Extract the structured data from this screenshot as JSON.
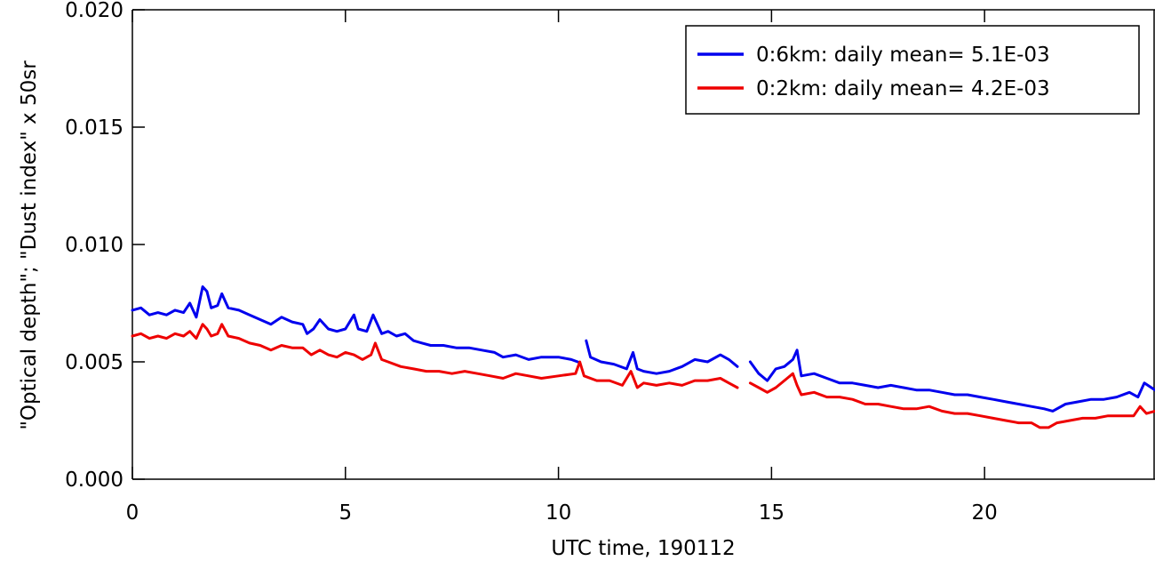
{
  "chart_data": {
    "type": "line",
    "xlabel": "UTC time, 190112",
    "ylabel": "\"Optical depth\"; \"Dust index\" x 50sr",
    "xlim": [
      0,
      24
    ],
    "ylim": [
      0,
      0.02
    ],
    "x_ticks": [
      0,
      5,
      10,
      15,
      20
    ],
    "x_tick_labels": [
      "0",
      "5",
      "10",
      "15",
      "20"
    ],
    "y_ticks": [
      0,
      0.005,
      0.01,
      0.015,
      0.02
    ],
    "y_tick_labels": [
      "0.000",
      "0.005",
      "0.010",
      "0.015",
      "0.020"
    ],
    "grid": false,
    "legend_position": "top-right",
    "series": [
      {
        "name": "0:6km: daily mean= 5.1E-03",
        "color": "#0000ee",
        "points": [
          [
            0,
            0.0072
          ],
          [
            0.2,
            0.0073
          ],
          [
            0.4,
            0.007
          ],
          [
            0.6,
            0.0071
          ],
          [
            0.8,
            0.007
          ],
          [
            1.0,
            0.0072
          ],
          [
            1.2,
            0.0071
          ],
          [
            1.35,
            0.0075
          ],
          [
            1.5,
            0.0069
          ],
          [
            1.65,
            0.0082
          ],
          [
            1.75,
            0.008
          ],
          [
            1.85,
            0.0073
          ],
          [
            2.0,
            0.0074
          ],
          [
            2.1,
            0.0079
          ],
          [
            2.25,
            0.0073
          ],
          [
            2.5,
            0.0072
          ],
          [
            2.75,
            0.007
          ],
          [
            3.0,
            0.0068
          ],
          [
            3.25,
            0.0066
          ],
          [
            3.5,
            0.0069
          ],
          [
            3.75,
            0.0067
          ],
          [
            4.0,
            0.0066
          ],
          [
            4.1,
            0.0062
          ],
          [
            4.25,
            0.0064
          ],
          [
            4.4,
            0.0068
          ],
          [
            4.6,
            0.0064
          ],
          [
            4.8,
            0.0063
          ],
          [
            5.0,
            0.0064
          ],
          [
            5.2,
            0.007
          ],
          [
            5.3,
            0.0064
          ],
          [
            5.5,
            0.0063
          ],
          [
            5.65,
            0.007
          ],
          [
            5.85,
            0.0062
          ],
          [
            6.0,
            0.0063
          ],
          [
            6.2,
            0.0061
          ],
          [
            6.4,
            0.0062
          ],
          [
            6.6,
            0.0059
          ],
          [
            6.8,
            0.0058
          ],
          [
            7.0,
            0.0057
          ],
          [
            7.3,
            0.0057
          ],
          [
            7.6,
            0.0056
          ],
          [
            7.9,
            0.0056
          ],
          [
            8.2,
            0.0055
          ],
          [
            8.5,
            0.0054
          ],
          [
            8.7,
            0.0052
          ],
          [
            9.0,
            0.0053
          ],
          [
            9.3,
            0.0051
          ],
          [
            9.6,
            0.0052
          ],
          [
            10.0,
            0.0052
          ],
          [
            10.3,
            0.0051
          ],
          [
            10.45,
            0.005
          ],
          [
            null,
            null
          ],
          [
            10.65,
            0.0059
          ],
          [
            10.75,
            0.0052
          ],
          [
            11.0,
            0.005
          ],
          [
            11.3,
            0.0049
          ],
          [
            11.6,
            0.0047
          ],
          [
            11.75,
            0.0054
          ],
          [
            11.85,
            0.0047
          ],
          [
            12.0,
            0.0046
          ],
          [
            12.3,
            0.0045
          ],
          [
            12.6,
            0.0046
          ],
          [
            12.9,
            0.0048
          ],
          [
            13.2,
            0.0051
          ],
          [
            13.5,
            0.005
          ],
          [
            13.8,
            0.0053
          ],
          [
            14.0,
            0.0051
          ],
          [
            14.2,
            0.0048
          ],
          [
            null,
            null
          ],
          [
            14.5,
            0.005
          ],
          [
            14.7,
            0.0045
          ],
          [
            14.9,
            0.0042
          ],
          [
            15.1,
            0.0047
          ],
          [
            15.3,
            0.0048
          ],
          [
            15.5,
            0.0051
          ],
          [
            15.6,
            0.0055
          ],
          [
            15.7,
            0.0044
          ],
          [
            16.0,
            0.0045
          ],
          [
            16.3,
            0.0043
          ],
          [
            16.6,
            0.0041
          ],
          [
            16.9,
            0.0041
          ],
          [
            17.2,
            0.004
          ],
          [
            17.5,
            0.0039
          ],
          [
            17.8,
            0.004
          ],
          [
            18.1,
            0.0039
          ],
          [
            18.4,
            0.0038
          ],
          [
            18.7,
            0.0038
          ],
          [
            19.0,
            0.0037
          ],
          [
            19.3,
            0.0036
          ],
          [
            19.6,
            0.0036
          ],
          [
            19.9,
            0.0035
          ],
          [
            20.2,
            0.0034
          ],
          [
            20.5,
            0.0033
          ],
          [
            20.8,
            0.0032
          ],
          [
            21.1,
            0.0031
          ],
          [
            21.4,
            0.003
          ],
          [
            21.6,
            0.0029
          ],
          [
            21.9,
            0.0032
          ],
          [
            22.2,
            0.0033
          ],
          [
            22.5,
            0.0034
          ],
          [
            22.8,
            0.0034
          ],
          [
            23.1,
            0.0035
          ],
          [
            23.4,
            0.0037
          ],
          [
            23.6,
            0.0035
          ],
          [
            23.75,
            0.0041
          ],
          [
            24.0,
            0.0038
          ]
        ]
      },
      {
        "name": "0:2km: daily mean= 4.2E-03",
        "color": "#ee0000",
        "points": [
          [
            0,
            0.0061
          ],
          [
            0.2,
            0.0062
          ],
          [
            0.4,
            0.006
          ],
          [
            0.6,
            0.0061
          ],
          [
            0.8,
            0.006
          ],
          [
            1.0,
            0.0062
          ],
          [
            1.2,
            0.0061
          ],
          [
            1.35,
            0.0063
          ],
          [
            1.5,
            0.006
          ],
          [
            1.65,
            0.0066
          ],
          [
            1.75,
            0.0064
          ],
          [
            1.85,
            0.0061
          ],
          [
            2.0,
            0.0062
          ],
          [
            2.1,
            0.0066
          ],
          [
            2.25,
            0.0061
          ],
          [
            2.5,
            0.006
          ],
          [
            2.75,
            0.0058
          ],
          [
            3.0,
            0.0057
          ],
          [
            3.25,
            0.0055
          ],
          [
            3.5,
            0.0057
          ],
          [
            3.75,
            0.0056
          ],
          [
            4.0,
            0.0056
          ],
          [
            4.2,
            0.0053
          ],
          [
            4.4,
            0.0055
          ],
          [
            4.6,
            0.0053
          ],
          [
            4.8,
            0.0052
          ],
          [
            5.0,
            0.0054
          ],
          [
            5.2,
            0.0053
          ],
          [
            5.4,
            0.0051
          ],
          [
            5.6,
            0.0053
          ],
          [
            5.7,
            0.0058
          ],
          [
            5.85,
            0.0051
          ],
          [
            6.0,
            0.005
          ],
          [
            6.3,
            0.0048
          ],
          [
            6.6,
            0.0047
          ],
          [
            6.9,
            0.0046
          ],
          [
            7.2,
            0.0046
          ],
          [
            7.5,
            0.0045
          ],
          [
            7.8,
            0.0046
          ],
          [
            8.1,
            0.0045
          ],
          [
            8.4,
            0.0044
          ],
          [
            8.7,
            0.0043
          ],
          [
            9.0,
            0.0045
          ],
          [
            9.3,
            0.0044
          ],
          [
            9.6,
            0.0043
          ],
          [
            10.0,
            0.0044
          ],
          [
            10.4,
            0.0045
          ],
          [
            10.5,
            0.005
          ],
          [
            10.6,
            0.0044
          ],
          [
            10.9,
            0.0042
          ],
          [
            11.2,
            0.0042
          ],
          [
            11.5,
            0.004
          ],
          [
            11.7,
            0.0046
          ],
          [
            11.85,
            0.0039
          ],
          [
            12.0,
            0.0041
          ],
          [
            12.3,
            0.004
          ],
          [
            12.6,
            0.0041
          ],
          [
            12.9,
            0.004
          ],
          [
            13.2,
            0.0042
          ],
          [
            13.5,
            0.0042
          ],
          [
            13.8,
            0.0043
          ],
          [
            14.0,
            0.0041
          ],
          [
            14.2,
            0.0039
          ],
          [
            null,
            null
          ],
          [
            14.5,
            0.0041
          ],
          [
            14.7,
            0.0039
          ],
          [
            14.9,
            0.0037
          ],
          [
            15.1,
            0.0039
          ],
          [
            15.3,
            0.0042
          ],
          [
            15.5,
            0.0045
          ],
          [
            15.6,
            0.004
          ],
          [
            15.7,
            0.0036
          ],
          [
            16.0,
            0.0037
          ],
          [
            16.3,
            0.0035
          ],
          [
            16.6,
            0.0035
          ],
          [
            16.9,
            0.0034
          ],
          [
            17.2,
            0.0032
          ],
          [
            17.5,
            0.0032
          ],
          [
            17.8,
            0.0031
          ],
          [
            18.1,
            0.003
          ],
          [
            18.4,
            0.003
          ],
          [
            18.7,
            0.0031
          ],
          [
            19.0,
            0.0029
          ],
          [
            19.3,
            0.0028
          ],
          [
            19.6,
            0.0028
          ],
          [
            19.9,
            0.0027
          ],
          [
            20.2,
            0.0026
          ],
          [
            20.5,
            0.0025
          ],
          [
            20.8,
            0.0024
          ],
          [
            21.1,
            0.0024
          ],
          [
            21.3,
            0.0022
          ],
          [
            21.5,
            0.0022
          ],
          [
            21.7,
            0.0024
          ],
          [
            22.0,
            0.0025
          ],
          [
            22.3,
            0.0026
          ],
          [
            22.6,
            0.0026
          ],
          [
            22.9,
            0.0027
          ],
          [
            23.2,
            0.0027
          ],
          [
            23.5,
            0.0027
          ],
          [
            23.65,
            0.0031
          ],
          [
            23.8,
            0.0028
          ],
          [
            24.0,
            0.0029
          ]
        ]
      }
    ]
  }
}
